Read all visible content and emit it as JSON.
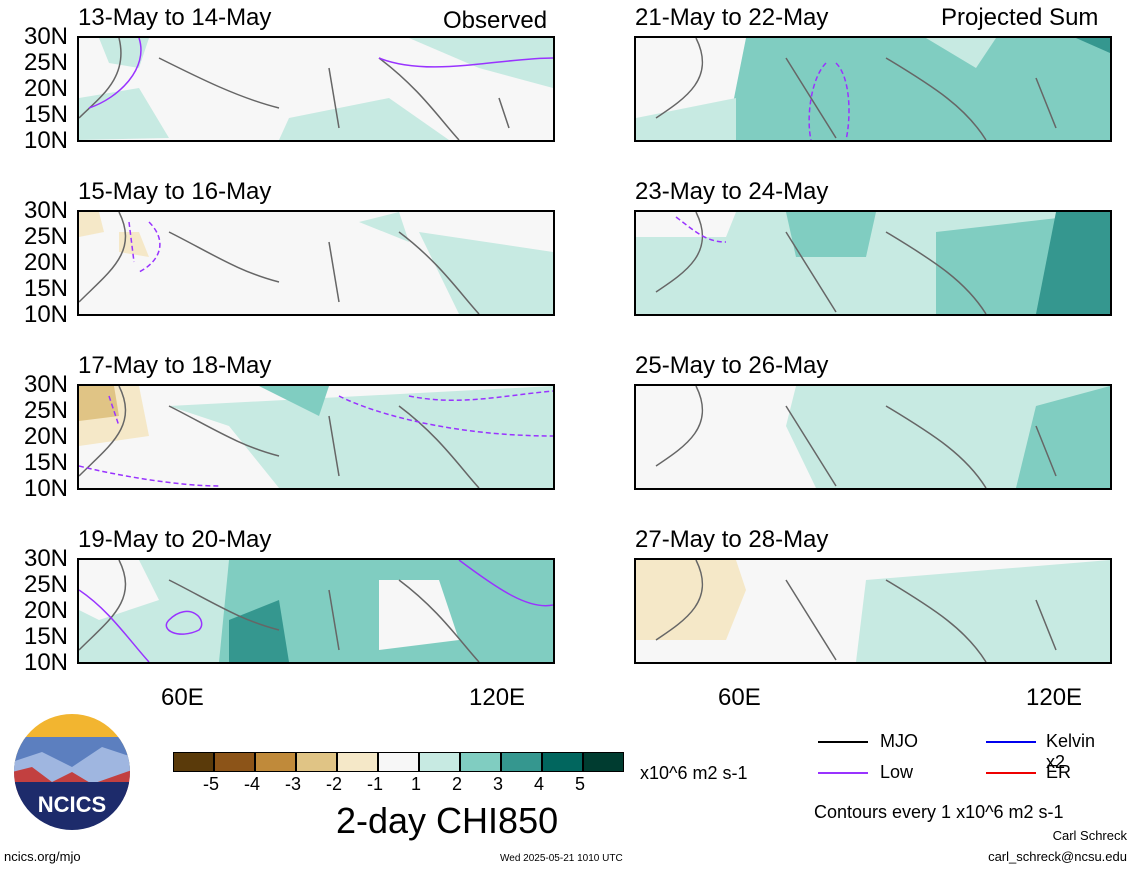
{
  "labels": {
    "observed": "Observed",
    "projected": "Projected Sum"
  },
  "lat_ticks": [
    "30N",
    "25N",
    "20N",
    "15N",
    "10N"
  ],
  "lon_ticks": [
    "60E",
    "120E"
  ],
  "panels": [
    {
      "title": "13-May to 14-May"
    },
    {
      "title": "21-May to 22-May"
    },
    {
      "title": "15-May to 16-May"
    },
    {
      "title": "23-May to 24-May"
    },
    {
      "title": "17-May to 18-May"
    },
    {
      "title": "25-May to 26-May"
    },
    {
      "title": "19-May to 20-May"
    },
    {
      "title": "27-May to 28-May"
    }
  ],
  "legend": {
    "mjo": "MJO",
    "kelvin": "Kelvin x2",
    "low": "Low",
    "er": "ER",
    "colors": {
      "mjo": "#000000",
      "kelvin": "#0000ee",
      "low": "#9933ff",
      "er": "#ee0000"
    }
  },
  "colorbar": {
    "colors": [
      "#5a3a0a",
      "#8c5418",
      "#c08a3a",
      "#e0c485",
      "#f5e8c8",
      "#f7f7f7",
      "#c7eae2",
      "#80cdc1",
      "#35978f",
      "#01665e",
      "#003c30"
    ],
    "ticks": [
      "-5",
      "-4",
      "-3",
      "-2",
      "-1",
      "1",
      "2",
      "3",
      "4",
      "5"
    ],
    "units": "x10^6 m2 s-1"
  },
  "main_title": "2-day CHI850",
  "contours_note": "Contours every 1 x10^6 m2 s-1",
  "author": "Carl Schreck",
  "email": "carl_schreck@ncsu.edu",
  "url": "ncics.org/mjo",
  "timestamp": "Wed 2025-05-21 1010 UTC",
  "logo_text": "NCICS"
}
